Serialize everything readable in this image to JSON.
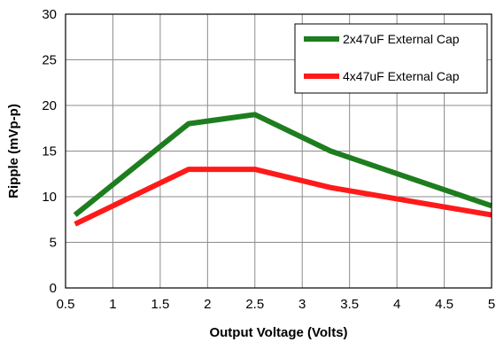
{
  "chart_data": {
    "type": "line",
    "title": "",
    "xlabel": "Output Voltage (Volts)",
    "ylabel": "Ripple (mVp-p)",
    "xlim": [
      0.5,
      5
    ],
    "ylim": [
      0,
      30
    ],
    "x_ticks": [
      "0.5",
      "1",
      "1.5",
      "2",
      "2.5",
      "3",
      "3.5",
      "4",
      "4.5",
      "5"
    ],
    "y_ticks": [
      "0",
      "5",
      "10",
      "15",
      "20",
      "25",
      "30"
    ],
    "x_tick_values": [
      0.5,
      1,
      1.5,
      2,
      2.5,
      3,
      3.5,
      4,
      4.5,
      5
    ],
    "y_tick_values": [
      0,
      5,
      10,
      15,
      20,
      25,
      30
    ],
    "grid": true,
    "legend_position": "top-right",
    "series": [
      {
        "name": "2x47uF External Cap",
        "color": "#1e7d1e",
        "x": [
          0.6,
          1.8,
          2.5,
          3.3,
          5.0
        ],
        "y": [
          8,
          18,
          19,
          15,
          9
        ]
      },
      {
        "name": "4x47uF External Cap",
        "color": "#ff1a1a",
        "x": [
          0.6,
          1.8,
          2.5,
          3.3,
          5.0
        ],
        "y": [
          7,
          13,
          13,
          11,
          8
        ]
      }
    ]
  }
}
